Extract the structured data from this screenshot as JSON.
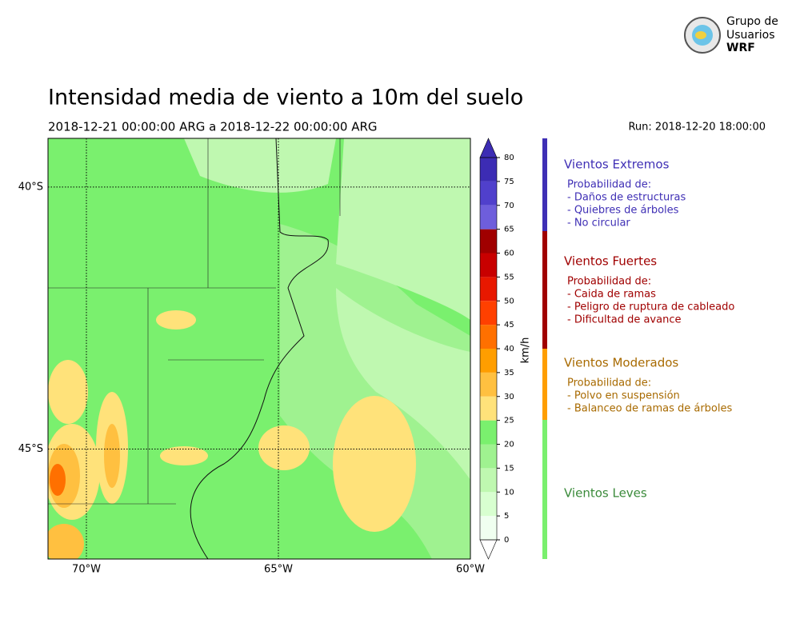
{
  "header": {
    "title": "Intensidad media de viento a 10m del suelo",
    "period": "2018-12-21 00:00:00 ARG  a  2018-12-22 00:00:00 ARG",
    "run": "Run: 2018-12-20 18:00:00"
  },
  "logo": {
    "lines": [
      "Grupo de",
      "Usuarios",
      "WRF"
    ]
  },
  "map": {
    "lonlim": [
      -71,
      -60
    ],
    "latlim": [
      -47.1,
      -39.07
    ],
    "lon_ticks": [
      {
        "value": -70,
        "label": "70°W"
      },
      {
        "value": -65,
        "label": "65°W"
      },
      {
        "value": -60,
        "label": "60°W"
      }
    ],
    "lat_ticks": [
      {
        "value": -40,
        "label": "40°S"
      },
      {
        "value": -45,
        "label": "45°S"
      }
    ]
  },
  "colorbar": {
    "unit": "km/h",
    "lim": [
      0,
      80
    ],
    "ticks": [
      0,
      5,
      10,
      15,
      20,
      25,
      30,
      35,
      40,
      45,
      50,
      55,
      60,
      65,
      70,
      75,
      80
    ],
    "colors": [
      "#f0fff0",
      "#d8ffd0",
      "#bff8b0",
      "#9ff290",
      "#7af06e",
      "#ffe27a",
      "#ffc040",
      "#ff9e00",
      "#ff7000",
      "#ff4000",
      "#e81800",
      "#c80000",
      "#a00000",
      "#6e5edc",
      "#5040cc",
      "#3c2cb4"
    ]
  },
  "legend": [
    {
      "title": "Vientos Extremos",
      "color": "#3f2fb5",
      "lines": [
        "Probabilidad de:",
        "- Daños de estructuras",
        "- Quiebres de árboles",
        "- No circular"
      ]
    },
    {
      "title": "Vientos Fuertes",
      "color": "#a00000",
      "lines": [
        "Probabilidad de:",
        "- Caida de ramas",
        "- Peligro de ruptura de cableado",
        "- Dificultad de avance"
      ]
    },
    {
      "title": "Vientos Moderados",
      "color": "#ff9e00",
      "text_color": "#a86a00",
      "lines": [
        "Probabilidad de:",
        "- Polvo en suspensión",
        "- Balanceo de ramas de árboles"
      ]
    },
    {
      "title": "Vientos Leves",
      "color": "#7af06e",
      "text_color": "#3a8a3a",
      "lines": []
    }
  ]
}
